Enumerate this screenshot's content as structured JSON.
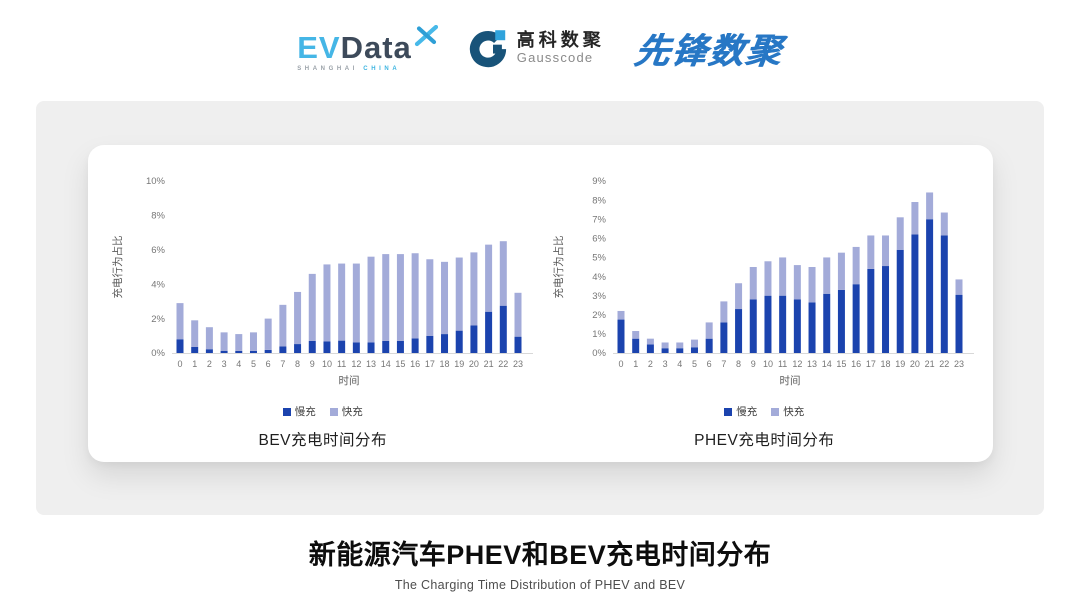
{
  "header": {
    "evdata": {
      "ev": "EV",
      "data": "Data",
      "sub_left": "SHANGHAI",
      "sub_right": "CHINA"
    },
    "gausscode": {
      "cn": "高科数聚",
      "en": "Gausscode"
    },
    "xianfeng": "先锋数聚"
  },
  "footer": {
    "title": "新能源汽车PHEV和BEV充电时间分布",
    "subtitle": "The Charging Time Distribution of PHEV and BEV"
  },
  "colors": {
    "slow_charge": "#1B43AE",
    "fast_charge": "#A3ABD9",
    "axis_line": "#D8D8D8",
    "tick_text": "#767676",
    "axis_title_text": "#5A5A5A"
  },
  "chart_data": [
    {
      "type": "bar",
      "stacked": true,
      "title": "BEV充电时间分布",
      "xlabel": "时间",
      "ylabel": "充电行为占比",
      "ylim": [
        0,
        10
      ],
      "ytick_step": 2,
      "ytick_suffix": "%",
      "grid": false,
      "legend_position": "bottom",
      "categories": [
        "0",
        "1",
        "2",
        "3",
        "4",
        "5",
        "6",
        "7",
        "8",
        "9",
        "10",
        "11",
        "12",
        "13",
        "14",
        "15",
        "16",
        "17",
        "18",
        "19",
        "20",
        "21",
        "22",
        "23"
      ],
      "series": [
        {
          "name": "慢充",
          "color": "#1B43AE",
          "values": [
            0.8,
            0.35,
            0.22,
            0.13,
            0.12,
            0.12,
            0.18,
            0.38,
            0.52,
            0.7,
            0.67,
            0.72,
            0.62,
            0.62,
            0.7,
            0.7,
            0.85,
            1.0,
            1.1,
            1.3,
            1.6,
            2.4,
            2.75,
            0.95
          ]
        },
        {
          "name": "快充",
          "color": "#A3ABD9",
          "values": [
            2.1,
            1.55,
            1.28,
            1.07,
            0.98,
            1.08,
            1.82,
            2.42,
            3.03,
            3.9,
            4.48,
            4.48,
            4.58,
            4.98,
            5.05,
            5.05,
            4.95,
            4.45,
            4.2,
            4.25,
            4.25,
            3.9,
            3.75,
            2.55
          ]
        }
      ]
    },
    {
      "type": "bar",
      "stacked": true,
      "title": "PHEV充电时间分布",
      "xlabel": "时间",
      "ylabel": "充电行为占比",
      "ylim": [
        0,
        9
      ],
      "ytick_step": 1,
      "ytick_suffix": "%",
      "grid": false,
      "legend_position": "bottom",
      "categories": [
        "0",
        "1",
        "2",
        "3",
        "4",
        "5",
        "6",
        "7",
        "8",
        "9",
        "10",
        "11",
        "12",
        "13",
        "14",
        "15",
        "16",
        "17",
        "18",
        "19",
        "20",
        "21",
        "22",
        "23"
      ],
      "series": [
        {
          "name": "慢充",
          "color": "#1B43AE",
          "values": [
            1.75,
            0.75,
            0.45,
            0.25,
            0.25,
            0.3,
            0.75,
            1.6,
            2.3,
            2.8,
            3.0,
            3.0,
            2.8,
            2.65,
            3.1,
            3.3,
            3.6,
            4.4,
            4.55,
            5.4,
            6.2,
            7.0,
            6.15,
            3.05
          ]
        },
        {
          "name": "快充",
          "color": "#A3ABD9",
          "values": [
            0.45,
            0.4,
            0.3,
            0.3,
            0.3,
            0.4,
            0.85,
            1.1,
            1.35,
            1.7,
            1.8,
            2.0,
            1.8,
            1.85,
            1.9,
            1.95,
            1.95,
            1.75,
            1.6,
            1.7,
            1.7,
            1.4,
            1.2,
            0.8
          ]
        }
      ]
    }
  ]
}
